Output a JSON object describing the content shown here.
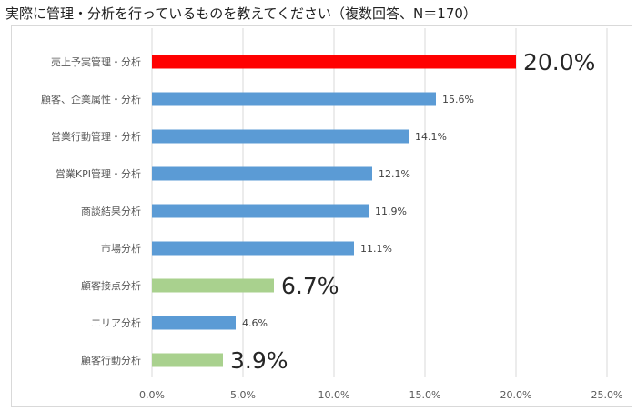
{
  "page_title": "実際に管理・分析を行っているものを教えてください（複数回答、N＝170）",
  "chart_data": {
    "type": "bar",
    "orientation": "horizontal",
    "title": "実際に管理・分析を行っているものを教えてください（複数回答、N＝170）",
    "xlabel": "",
    "ylabel": "",
    "xlim": [
      0,
      25
    ],
    "x_ticks": [
      "0.0%",
      "5.0%",
      "10.0%",
      "15.0%",
      "20.0%",
      "25.0%"
    ],
    "x_tick_values": [
      0,
      5,
      10,
      15,
      20,
      25
    ],
    "grid": true,
    "categories": [
      "売上予実管理・分析",
      "顧客、企業属性・分析",
      "営業行動管理・分析",
      "営業KPI管理・分析",
      "商談結果分析",
      "市場分析",
      "顧客接点分析",
      "エリア分析",
      "顧客行動分析"
    ],
    "values": [
      20.0,
      15.6,
      14.1,
      12.1,
      11.9,
      11.1,
      6.7,
      4.6,
      3.9
    ],
    "value_labels": [
      "20.0%",
      "15.6%",
      "14.1%",
      "12.1%",
      "11.9%",
      "11.1%",
      "6.7%",
      "4.6%",
      "3.9%"
    ],
    "label_emphasis": [
      "large",
      "normal",
      "normal",
      "normal",
      "normal",
      "normal",
      "large",
      "normal",
      "large"
    ],
    "bar_colors": [
      "#ff0000",
      "#5b9bd5",
      "#5b9bd5",
      "#5b9bd5",
      "#5b9bd5",
      "#5b9bd5",
      "#a9d18e",
      "#5b9bd5",
      "#a9d18e"
    ]
  }
}
